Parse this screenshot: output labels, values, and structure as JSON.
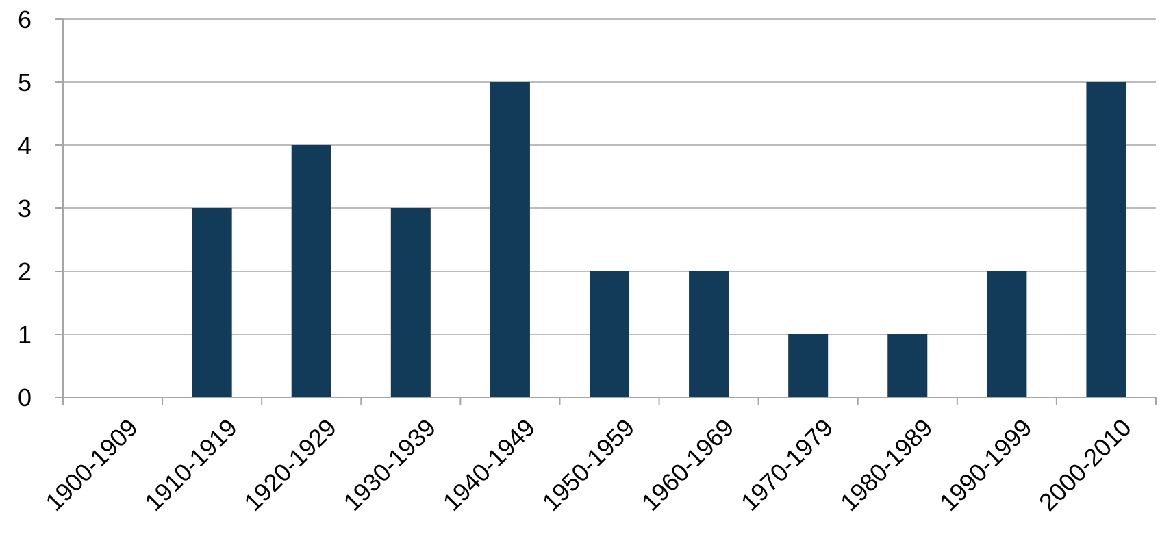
{
  "chart_data": {
    "type": "bar",
    "title": "",
    "xlabel": "",
    "ylabel": "",
    "categories": [
      "1900-1909",
      "1910-1919",
      "1920-1929",
      "1930-1939",
      "1940-1949",
      "1950-1959",
      "1960-1969",
      "1970-1979",
      "1980-1989",
      "1990-1999",
      "2000-2010"
    ],
    "values": [
      0,
      3,
      4,
      3,
      5,
      2,
      2,
      1,
      1,
      2,
      5
    ],
    "ylim": [
      0,
      6
    ],
    "yticks": [
      "0",
      "1",
      "2",
      "3",
      "4",
      "5",
      "6"
    ],
    "grid": true,
    "legend": "none",
    "bar_color": "#123b59"
  }
}
